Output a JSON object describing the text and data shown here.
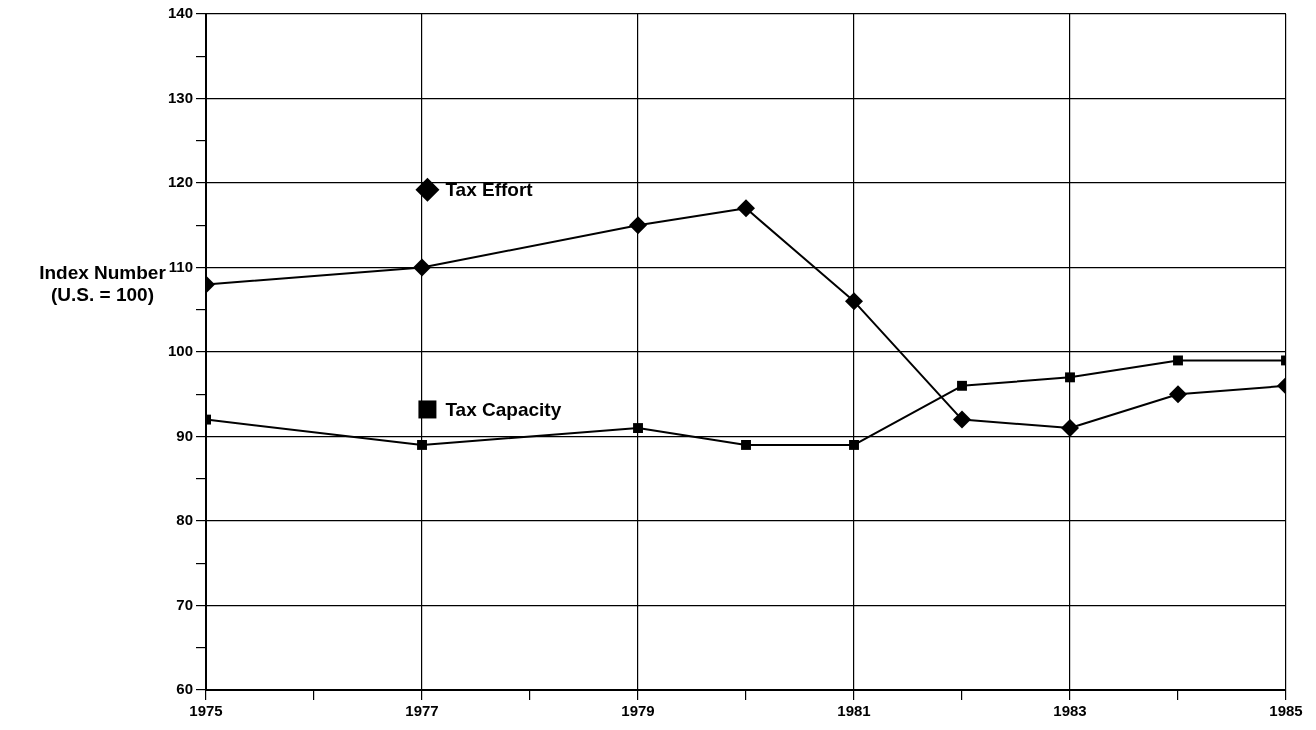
{
  "chart_data": {
    "type": "line",
    "ylabel": "Index Number (U.S. = 100)",
    "x": [
      1975,
      1977,
      1979,
      1980,
      1981,
      1982,
      1983,
      1984,
      1985
    ],
    "series": [
      {
        "name": "Tax Effort",
        "color": "#000000",
        "marker": "diamond",
        "values": [
          108,
          110,
          115,
          117,
          106,
          92,
          91,
          95,
          96
        ]
      },
      {
        "name": "Tax Capacity",
        "color": "#000000",
        "marker": "square",
        "values": [
          92,
          89,
          91,
          89,
          89,
          96,
          97,
          99,
          99
        ]
      }
    ],
    "xlim": [
      1975,
      1985
    ],
    "xticks": [
      1975,
      {
        "value": 1976,
        "label": null
      },
      1977,
      {
        "value": 1978,
        "label": null
      },
      1979,
      {
        "value": 1980,
        "label": null
      },
      1981,
      {
        "value": 1982,
        "label": null
      },
      1983,
      {
        "value": 1984,
        "label": null
      },
      1985
    ],
    "ylim": [
      60,
      140
    ],
    "yticks": [
      60,
      {
        "value": 65,
        "label": null
      },
      70,
      {
        "value": 75,
        "label": null
      },
      80,
      {
        "value": 85,
        "label": null
      },
      90,
      {
        "value": 95,
        "label": null
      },
      100,
      {
        "value": 105,
        "label": null
      },
      110,
      {
        "value": 115,
        "label": null
      },
      120,
      {
        "value": 125,
        "label": null
      },
      130,
      {
        "value": 135,
        "label": null
      },
      140
    ],
    "grid": true,
    "legend": "top left",
    "line_style": "solid"
  }
}
